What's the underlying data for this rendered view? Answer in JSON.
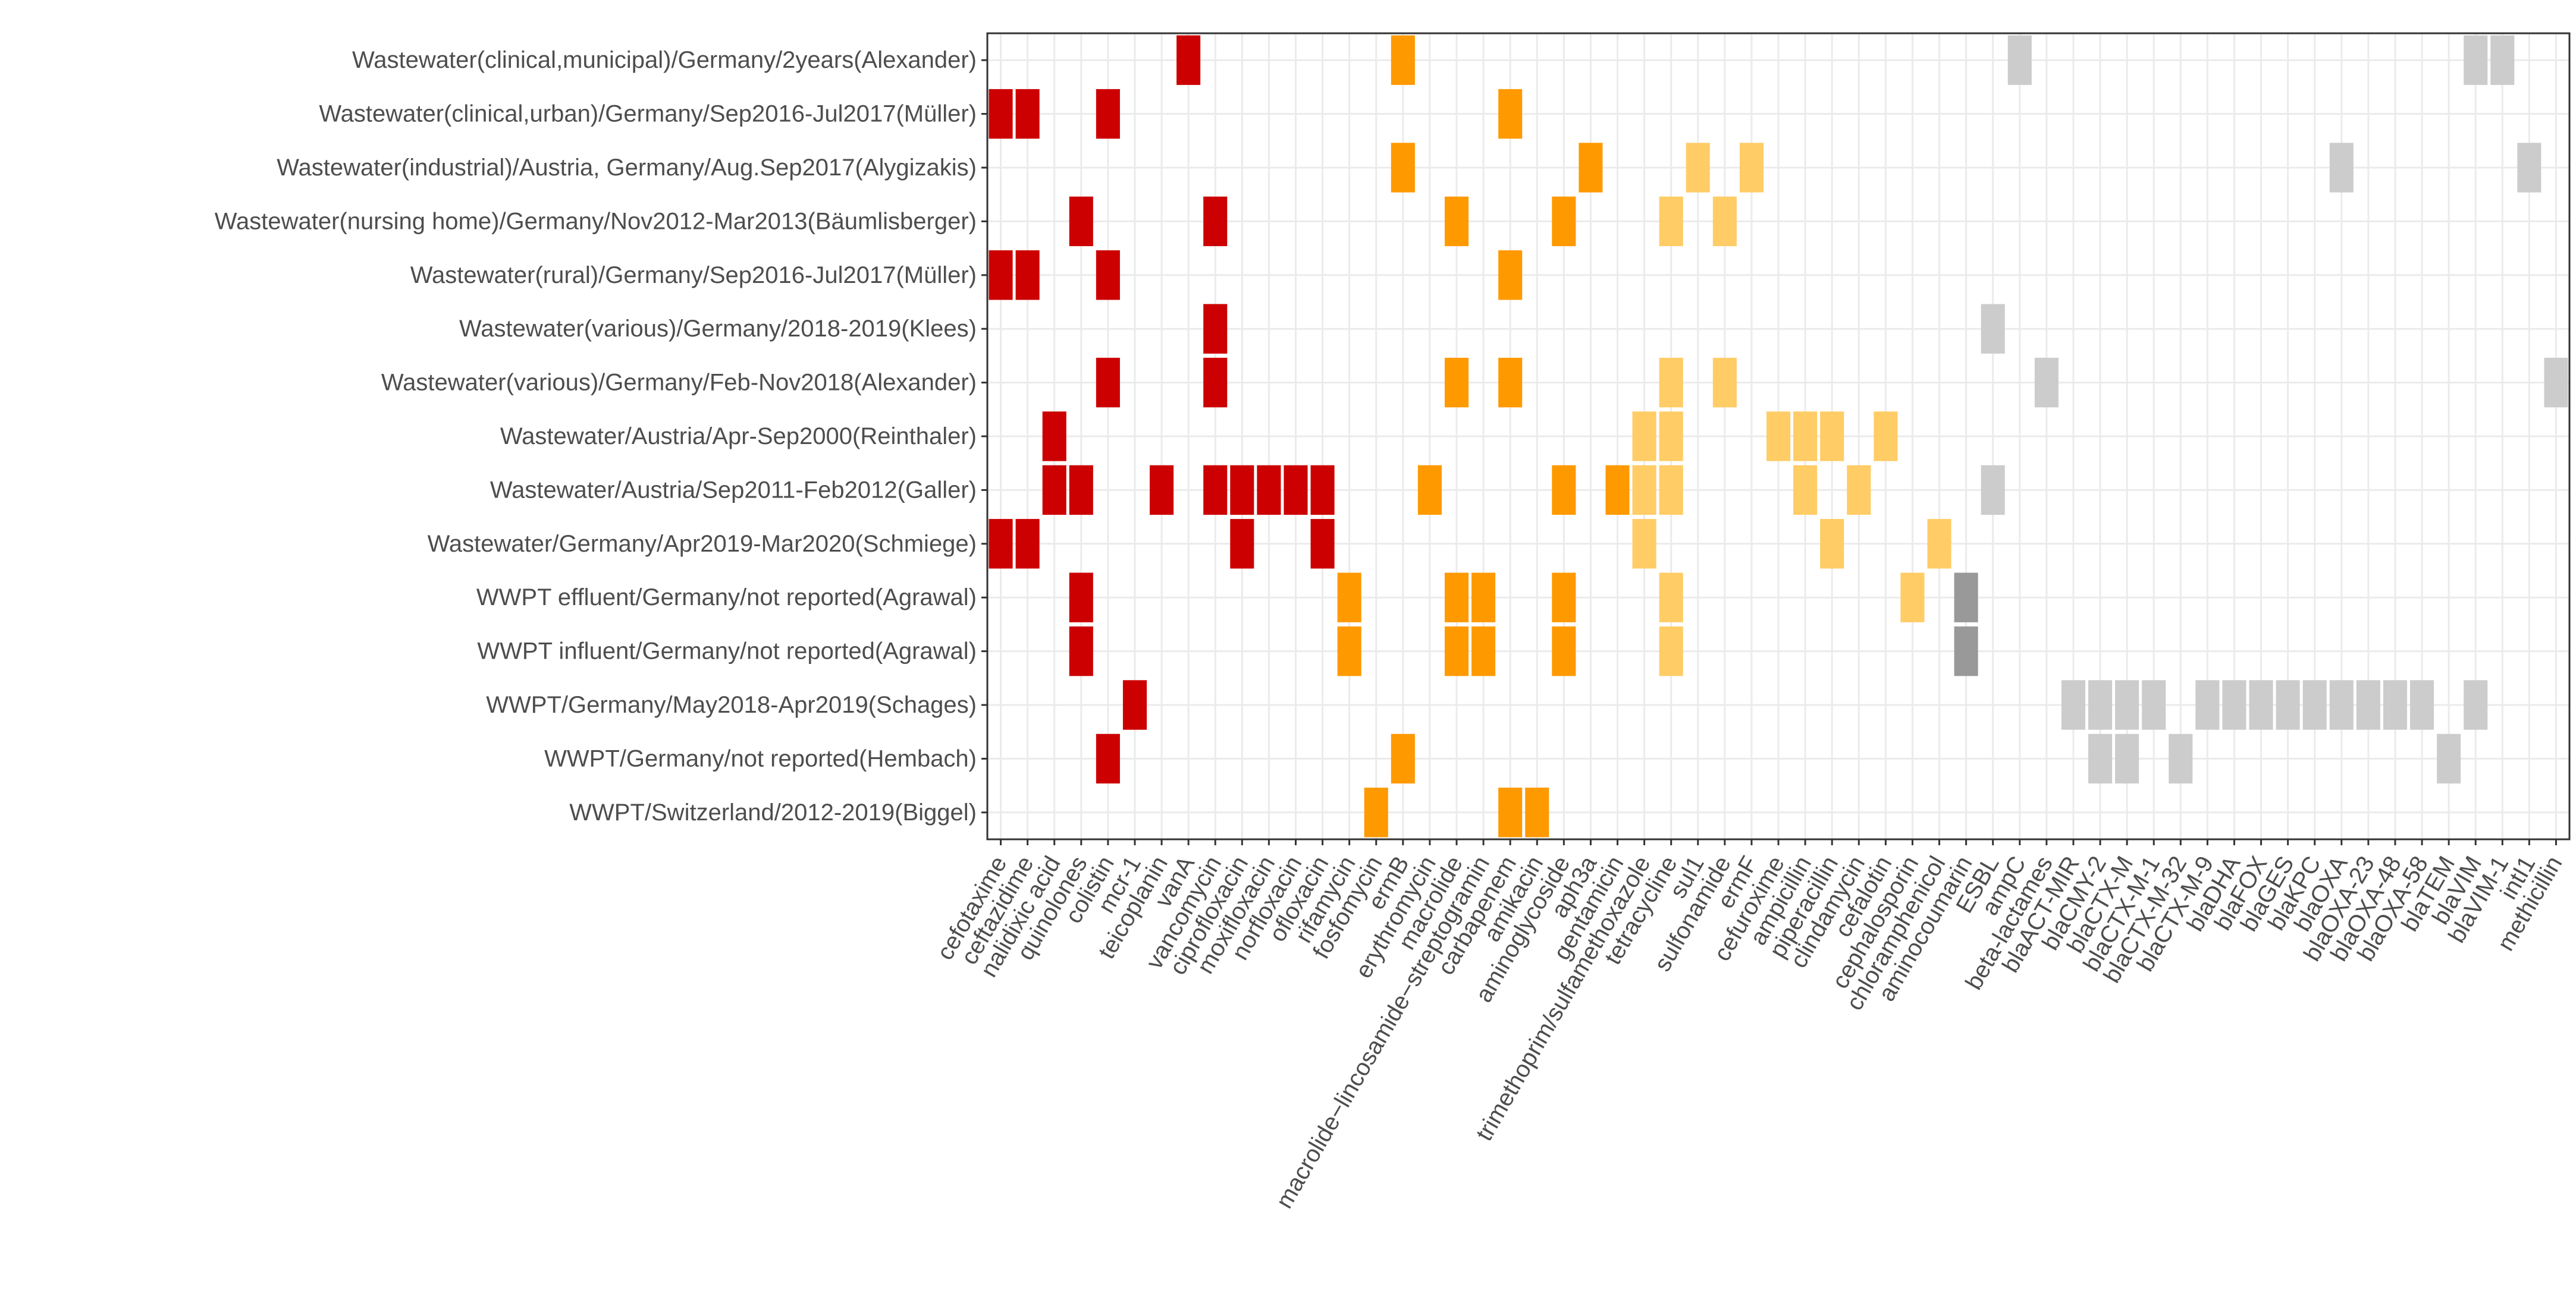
{
  "chart_data": {
    "type": "heatmap",
    "title": "",
    "xlabel": "",
    "ylabel": "",
    "grid": true,
    "legend": "none",
    "colors": {
      "red": "#cc0000",
      "orange": "#ff9900",
      "light_orange": "#ffcc66",
      "light_gray": "#cccccc",
      "dark_gray": "#999999",
      "grid": "#ebebeb",
      "panel_border": "#333333",
      "label_text": "#4d4d4d"
    },
    "x_categories": [
      "cefotaxime",
      "ceftazidime",
      "nalidixic acid",
      "quinolones",
      "colistin",
      "mcr-1",
      "teicoplanin",
      "vanA",
      "vancomycin",
      "ciprofloxacin",
      "moxifloxacin",
      "norfloxacin",
      "ofloxacin",
      "rifamycin",
      "fosfomycin",
      "ermB",
      "erythromycin",
      "macrolide",
      "macrolide−lincosamide−streptogramin",
      "carbapenem",
      "amikacin",
      "aminoglycoside",
      "aph3a",
      "gentamicin",
      "trimethoprim/sulfamethoxazole",
      "tetracycline",
      "sul1",
      "sulfonamide",
      "ermF",
      "cefuroxime",
      "ampicillin",
      "piperacillin",
      "clindamycin",
      "cefalotin",
      "cephalosporin",
      "chloramphenicol",
      "aminocoumarin",
      "ESBL",
      "ampC",
      "beta-lactames",
      "blaACT-MIR",
      "blaCMY-2",
      "blaCTX-M",
      "blaCTX-M-1",
      "blaCTX-M-32",
      "blaCTX-M-9",
      "blaDHA",
      "blaFOX",
      "blaGES",
      "blaKPC",
      "blaOXA",
      "blaOXA-23",
      "blaOXA-48",
      "blaOXA-58",
      "blaTEM",
      "blaVIM",
      "blaVIM-1",
      "intI1",
      "methicillin"
    ],
    "y_categories": [
      "Wastewater(clinical,municipal)/Germany/2years(Alexander)",
      "Wastewater(clinical,urban)/Germany/Sep2016-Jul2017(Müller)",
      "Wastewater(industrial)/Austria, Germany/Aug.Sep2017(Alygizakis)",
      "Wastewater(nursing home)/Germany/Nov2012-Mar2013(Bäumlisberger)",
      "Wastewater(rural)/Germany/Sep2016-Jul2017(Müller)",
      "Wastewater(various)/Germany/2018-2019(Klees)",
      "Wastewater(various)/Germany/Feb-Nov2018(Alexander)",
      "Wastewater/Austria/Apr-Sep2000(Reinthaler)",
      "Wastewater/Austria/Sep2011-Feb2012(Galler)",
      "Wastewater/Germany/Apr2019-Mar2020(Schmiege)",
      "WWPT effluent/Germany/not reported(Agrawal)",
      "WWPT influent/Germany/not reported(Agrawal)",
      "WWPT/Germany/May2018-Apr2019(Schages)",
      "WWPT/Germany/not reported(Hembach)",
      "WWPT/Switzerland/2012-2019(Biggel)"
    ],
    "cells": [
      [
        [
          7,
          "red"
        ],
        [
          15,
          "orange"
        ],
        [
          38,
          "light_gray"
        ],
        [
          55,
          "light_gray"
        ],
        [
          56,
          "light_gray"
        ]
      ],
      [
        [
          0,
          "red"
        ],
        [
          1,
          "red"
        ],
        [
          4,
          "red"
        ],
        [
          19,
          "orange"
        ]
      ],
      [
        [
          15,
          "orange"
        ],
        [
          22,
          "orange"
        ],
        [
          26,
          "light_orange"
        ],
        [
          28,
          "light_orange"
        ],
        [
          50,
          "light_gray"
        ],
        [
          57,
          "light_gray"
        ]
      ],
      [
        [
          3,
          "red"
        ],
        [
          8,
          "red"
        ],
        [
          17,
          "orange"
        ],
        [
          21,
          "orange"
        ],
        [
          25,
          "light_orange"
        ],
        [
          27,
          "light_orange"
        ]
      ],
      [
        [
          0,
          "red"
        ],
        [
          1,
          "red"
        ],
        [
          4,
          "red"
        ],
        [
          19,
          "orange"
        ]
      ],
      [
        [
          8,
          "red"
        ],
        [
          37,
          "light_gray"
        ]
      ],
      [
        [
          4,
          "red"
        ],
        [
          8,
          "red"
        ],
        [
          17,
          "orange"
        ],
        [
          19,
          "orange"
        ],
        [
          25,
          "light_orange"
        ],
        [
          27,
          "light_orange"
        ],
        [
          39,
          "light_gray"
        ],
        [
          58,
          "light_gray"
        ]
      ],
      [
        [
          2,
          "red"
        ],
        [
          24,
          "light_orange"
        ],
        [
          25,
          "light_orange"
        ],
        [
          29,
          "light_orange"
        ],
        [
          30,
          "light_orange"
        ],
        [
          31,
          "light_orange"
        ],
        [
          33,
          "light_orange"
        ]
      ],
      [
        [
          2,
          "red"
        ],
        [
          3,
          "red"
        ],
        [
          6,
          "red"
        ],
        [
          8,
          "red"
        ],
        [
          9,
          "red"
        ],
        [
          10,
          "red"
        ],
        [
          11,
          "red"
        ],
        [
          12,
          "red"
        ],
        [
          16,
          "orange"
        ],
        [
          21,
          "orange"
        ],
        [
          23,
          "orange"
        ],
        [
          24,
          "light_orange"
        ],
        [
          25,
          "light_orange"
        ],
        [
          30,
          "light_orange"
        ],
        [
          32,
          "light_orange"
        ],
        [
          37,
          "light_gray"
        ]
      ],
      [
        [
          0,
          "red"
        ],
        [
          1,
          "red"
        ],
        [
          9,
          "red"
        ],
        [
          12,
          "red"
        ],
        [
          24,
          "light_orange"
        ],
        [
          31,
          "light_orange"
        ],
        [
          35,
          "light_orange"
        ]
      ],
      [
        [
          3,
          "red"
        ],
        [
          13,
          "orange"
        ],
        [
          17,
          "orange"
        ],
        [
          18,
          "orange"
        ],
        [
          21,
          "orange"
        ],
        [
          25,
          "light_orange"
        ],
        [
          34,
          "light_orange"
        ],
        [
          36,
          "dark_gray"
        ]
      ],
      [
        [
          3,
          "red"
        ],
        [
          13,
          "orange"
        ],
        [
          17,
          "orange"
        ],
        [
          18,
          "orange"
        ],
        [
          21,
          "orange"
        ],
        [
          25,
          "light_orange"
        ],
        [
          36,
          "dark_gray"
        ]
      ],
      [
        [
          5,
          "red"
        ],
        [
          40,
          "light_gray"
        ],
        [
          41,
          "light_gray"
        ],
        [
          42,
          "light_gray"
        ],
        [
          43,
          "light_gray"
        ],
        [
          45,
          "light_gray"
        ],
        [
          46,
          "light_gray"
        ],
        [
          47,
          "light_gray"
        ],
        [
          48,
          "light_gray"
        ],
        [
          49,
          "light_gray"
        ],
        [
          50,
          "light_gray"
        ],
        [
          51,
          "light_gray"
        ],
        [
          52,
          "light_gray"
        ],
        [
          53,
          "light_gray"
        ],
        [
          55,
          "light_gray"
        ]
      ],
      [
        [
          4,
          "red"
        ],
        [
          15,
          "orange"
        ],
        [
          41,
          "light_gray"
        ],
        [
          42,
          "light_gray"
        ],
        [
          44,
          "light_gray"
        ],
        [
          54,
          "light_gray"
        ]
      ],
      [
        [
          14,
          "orange"
        ],
        [
          19,
          "orange"
        ],
        [
          20,
          "orange"
        ]
      ]
    ]
  }
}
